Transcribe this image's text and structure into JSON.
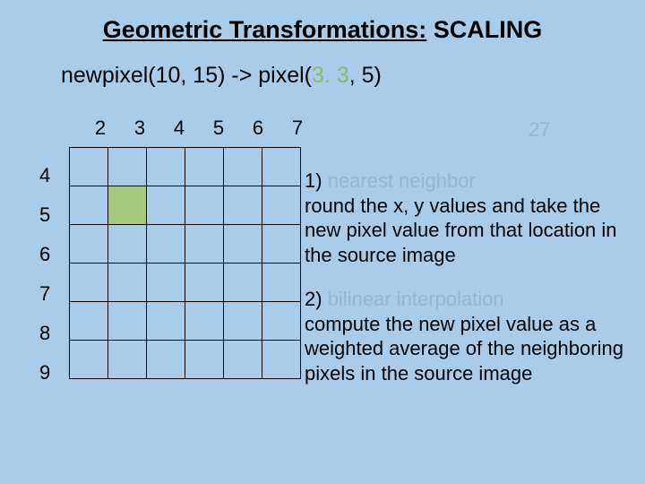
{
  "colors": {
    "background": "#a9cce9",
    "text": "#000000",
    "accent": "#8fb76e",
    "filled_cell": "#a6c97e",
    "grid_border": "#000000",
    "faded": "#7a9dbd"
  },
  "title": {
    "underlined": "Geometric Transformations:",
    "plain": " SCALING"
  },
  "subtitle": {
    "prefix": "newpixel(10, 15) -> pixel(",
    "accent": "3. 3",
    "suffix": ", 5)"
  },
  "grid": {
    "col_labels": [
      "2",
      "3",
      "4",
      "5",
      "6",
      "7"
    ],
    "row_labels": [
      "4",
      "5",
      "6",
      "7",
      "8",
      "9"
    ],
    "cols": 6,
    "rows": 6,
    "filled_cell": {
      "row": 1,
      "col": 1
    },
    "cell_size": 44
  },
  "faded_top_right": "27",
  "body": {
    "p1_lead": "1) ",
    "p1_faded": "nearest neighbor",
    "p1_rest": "round the x, y values and take the new pixel value from that location in the source image",
    "p2_lead": "2) ",
    "p2_faded": "bilinear interpolation",
    "p2_rest": "compute the new pixel value as a weighted average of the neighboring pixels in the source image"
  }
}
